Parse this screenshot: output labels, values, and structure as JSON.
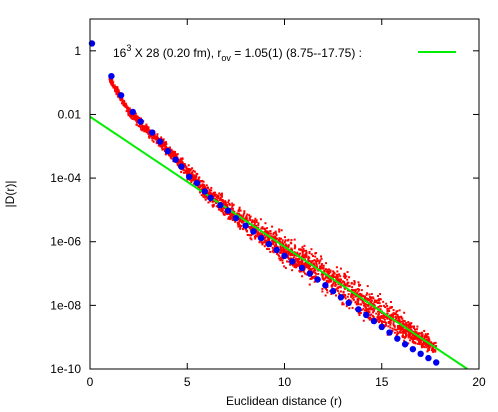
{
  "chart_data": {
    "type": "scatter",
    "xlabel": "Euclidean distance (r)",
    "ylabel": "|D(r)|",
    "xlim": [
      0,
      20
    ],
    "ylim": [
      1e-10,
      10
    ],
    "yscale": "log",
    "xticks": [
      0,
      5,
      10,
      15,
      20
    ],
    "xtick_labels": [
      "0",
      "5",
      "10",
      "15",
      "20"
    ],
    "yticks": [
      1,
      0.01,
      0.0001,
      1e-06,
      1e-08,
      1e-10
    ],
    "ytick_labels": [
      "1",
      "0.01",
      "1e-04",
      "1e-06",
      "1e-08",
      "1e-10"
    ],
    "grid": false,
    "legend": {
      "placement": "top-right",
      "label_main": "16",
      "label_sup": "3",
      "label_mid": " X 28 (0.20 fm), r",
      "label_sub": "ov",
      "label_end": " =  1.05(1) (8.75--17.75) :",
      "color": "#00ee00"
    },
    "fit_line": {
      "name": "16^3 X 28 (0.20 fm), r_ov = 1.05(1) (8.75--17.75)",
      "color": "#00ee00",
      "points": [
        [
          0,
          0.0085
        ],
        [
          19.4,
          1e-10
        ]
      ]
    },
    "series": [
      {
        "kind": "envelope",
        "color": "#ff0000",
        "upper": [
          [
            1.0,
            0.2
          ],
          [
            2.0,
            0.02
          ],
          [
            3.0,
            0.005
          ],
          [
            4.0,
            0.0015
          ],
          [
            5.0,
            0.00035
          ],
          [
            6.0,
            8e-05
          ],
          [
            7.0,
            3e-05
          ],
          [
            8.0,
            1.2e-05
          ],
          [
            9.0,
            5e-06
          ],
          [
            10.0,
            2.5e-06
          ],
          [
            11.0,
            1.1e-06
          ],
          [
            12.0,
            5e-07
          ],
          [
            13.0,
            2e-07
          ],
          [
            14.0,
            8e-08
          ],
          [
            15.0,
            3e-08
          ],
          [
            16.0,
            9e-09
          ],
          [
            17.0,
            2.5e-09
          ],
          [
            17.8,
            8e-10
          ]
        ],
        "lower": [
          [
            1.0,
            0.1
          ],
          [
            2.0,
            0.007
          ],
          [
            3.0,
            0.0018
          ],
          [
            4.0,
            0.0004
          ],
          [
            5.0,
            8e-05
          ],
          [
            6.0,
            1.5e-05
          ],
          [
            7.0,
            4e-06
          ],
          [
            8.0,
            1.2e-06
          ],
          [
            9.0,
            4e-07
          ],
          [
            10.0,
            1.3e-07
          ],
          [
            11.0,
            5e-08
          ],
          [
            12.0,
            1.8e-08
          ],
          [
            13.0,
            7e-09
          ],
          [
            14.0,
            2.5e-09
          ],
          [
            15.0,
            1.2e-09
          ],
          [
            16.0,
            6e-10
          ],
          [
            17.0,
            3e-10
          ],
          [
            17.8,
            2.5e-10
          ]
        ]
      },
      {
        "kind": "points",
        "color": "#0000ee",
        "points": [
          [
            0.1,
            1.7
          ],
          [
            1.1,
            0.16
          ],
          [
            1.6,
            0.04
          ],
          [
            2.2,
            0.012
          ],
          [
            2.6,
            0.006
          ],
          [
            3.2,
            0.0027
          ],
          [
            3.6,
            0.0014
          ],
          [
            4.0,
            0.0007
          ],
          [
            4.4,
            0.00038
          ],
          [
            4.7,
            0.00023
          ],
          [
            5.1,
            0.00011
          ],
          [
            5.5,
            7e-05
          ],
          [
            5.9,
            3.8e-05
          ],
          [
            6.2,
            2.4e-05
          ],
          [
            6.7,
            1.4e-05
          ],
          [
            7.1,
            9.5e-06
          ],
          [
            7.5,
            5.5e-06
          ],
          [
            8.0,
            3.2e-06
          ],
          [
            8.4,
            2.1e-06
          ],
          [
            8.8,
            1.3e-06
          ],
          [
            9.2,
            8.5e-07
          ],
          [
            9.6,
            5.5e-07
          ],
          [
            10.0,
            3.6e-07
          ],
          [
            10.4,
            2.4e-07
          ],
          [
            10.9,
            1.5e-07
          ],
          [
            11.3,
            1e-07
          ],
          [
            11.7,
            6.5e-08
          ],
          [
            12.1,
            4.3e-08
          ],
          [
            12.5,
            2.8e-08
          ],
          [
            12.9,
            1.8e-08
          ],
          [
            13.3,
            1.2e-08
          ],
          [
            13.8,
            7.5e-09
          ],
          [
            14.2,
            5e-09
          ],
          [
            14.6,
            3.2e-09
          ],
          [
            15.0,
            2.1e-09
          ],
          [
            15.4,
            1.4e-09
          ],
          [
            15.8,
            9e-10
          ],
          [
            16.2,
            6e-10
          ],
          [
            16.6,
            4.2e-10
          ],
          [
            17.0,
            3e-10
          ],
          [
            17.4,
            2.2e-10
          ],
          [
            17.8,
            1.6e-10
          ]
        ]
      }
    ]
  }
}
